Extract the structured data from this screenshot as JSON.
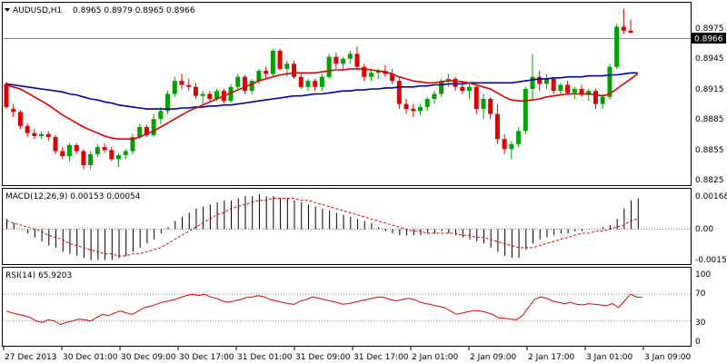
{
  "header": {
    "symbol": "AUDUSD,H1",
    "ohlc": "0.8965 0.8979 0.8965 0.8966"
  },
  "colors": {
    "bull": "#00a000",
    "bear": "#e00000",
    "ma_fast": "#e00000",
    "ma_slow": "#0000a0",
    "macd_bar": "#000000",
    "macd_signal": "#e00000",
    "rsi": "#e00000",
    "grid_dot": "#808080",
    "price_tag_bg": "#000000",
    "price_tag_fg": "#ffffff"
  },
  "current_price": "0.8966",
  "price_axis": [
    "0.8975",
    "0.8945",
    "0.8915",
    "0.8885",
    "0.8855",
    "0.8825"
  ],
  "macd": {
    "label": "MACD(12,26,9) 0.00153 0.00054",
    "axis": [
      "0.00168",
      "0.00",
      "-0.0015"
    ]
  },
  "rsi": {
    "label": "RSI(14) 65.9203",
    "axis": [
      "100",
      "70",
      "30",
      "0"
    ],
    "levels": [
      70,
      30
    ],
    "values": [
      45,
      42,
      40,
      38,
      35,
      30,
      28,
      32,
      30,
      25,
      28,
      30,
      33,
      32,
      30,
      35,
      40,
      38,
      42,
      45,
      42,
      40,
      45,
      50,
      52,
      55,
      58,
      60,
      62,
      65,
      68,
      70,
      68,
      70,
      66,
      64,
      60,
      58,
      60,
      62,
      65,
      66,
      68,
      66,
      62,
      60,
      58,
      56,
      55,
      60,
      62,
      66,
      64,
      62,
      60,
      58,
      55,
      56,
      58,
      60,
      62,
      64,
      66,
      65,
      62,
      60,
      62,
      64,
      62,
      58,
      56,
      54,
      52,
      50,
      45,
      40,
      42,
      44,
      46,
      45,
      43,
      40,
      35,
      34,
      33,
      32,
      38,
      50,
      62,
      66,
      64,
      60,
      58,
      56,
      58,
      55,
      54,
      56,
      55,
      54,
      53,
      56,
      50,
      60,
      70,
      66,
      65
    ]
  },
  "x_axis": [
    "27 Dec 2013",
    "30 Dec 01:00",
    "30 Dec 09:00",
    "30 Dec 17:00",
    "31 Dec 01:00",
    "31 Dec 09:00",
    "31 Dec 17:00",
    "2 Jan 01:00",
    "2 Jan 09:00",
    "2 Jan 17:00",
    "3 Jan 01:00",
    "3 Jan 09:00"
  ],
  "chart_data": {
    "type": "candlestick",
    "price_range": [
      0.8815,
      0.8995
    ],
    "candles": [
      [
        0.8915,
        0.8917,
        0.889,
        0.8892
      ],
      [
        0.889,
        0.8895,
        0.8882,
        0.8887
      ],
      [
        0.8887,
        0.8889,
        0.887,
        0.8873
      ],
      [
        0.8873,
        0.8876,
        0.8862,
        0.8866
      ],
      [
        0.8866,
        0.887,
        0.886,
        0.8863
      ],
      [
        0.8863,
        0.8868,
        0.886,
        0.8865
      ],
      [
        0.8865,
        0.8868,
        0.8858,
        0.8862
      ],
      [
        0.8862,
        0.8864,
        0.8845,
        0.8848
      ],
      [
        0.8848,
        0.8852,
        0.884,
        0.8843
      ],
      [
        0.8843,
        0.8856,
        0.8838,
        0.8854
      ],
      [
        0.8854,
        0.8856,
        0.8845,
        0.8848
      ],
      [
        0.8848,
        0.885,
        0.883,
        0.8834
      ],
      [
        0.8834,
        0.8848,
        0.883,
        0.8845
      ],
      [
        0.8845,
        0.8855,
        0.8842,
        0.8852
      ],
      [
        0.8852,
        0.8856,
        0.8846,
        0.8849
      ],
      [
        0.8849,
        0.8852,
        0.8838,
        0.884
      ],
      [
        0.884,
        0.8846,
        0.8832,
        0.8844
      ],
      [
        0.8844,
        0.885,
        0.884,
        0.8848
      ],
      [
        0.8848,
        0.8865,
        0.8845,
        0.8862
      ],
      [
        0.8862,
        0.8875,
        0.886,
        0.8872
      ],
      [
        0.8872,
        0.8874,
        0.8862,
        0.8864
      ],
      [
        0.8864,
        0.8885,
        0.8862,
        0.888
      ],
      [
        0.888,
        0.8892,
        0.8875,
        0.8888
      ],
      [
        0.8888,
        0.8908,
        0.8885,
        0.8905
      ],
      [
        0.8905,
        0.8922,
        0.8902,
        0.8918
      ],
      [
        0.8918,
        0.8925,
        0.891,
        0.8914
      ],
      [
        0.8914,
        0.892,
        0.8908,
        0.8912
      ],
      [
        0.8912,
        0.8916,
        0.89,
        0.8903
      ],
      [
        0.8903,
        0.8908,
        0.8895,
        0.8905
      ],
      [
        0.8905,
        0.8908,
        0.8898,
        0.89
      ],
      [
        0.89,
        0.891,
        0.8898,
        0.8908
      ],
      [
        0.8908,
        0.891,
        0.8895,
        0.8898
      ],
      [
        0.8898,
        0.8915,
        0.8896,
        0.8912
      ],
      [
        0.8912,
        0.8925,
        0.891,
        0.8922
      ],
      [
        0.8922,
        0.8924,
        0.8905,
        0.8908
      ],
      [
        0.8908,
        0.892,
        0.8905,
        0.8918
      ],
      [
        0.8918,
        0.893,
        0.8915,
        0.8928
      ],
      [
        0.8928,
        0.8932,
        0.892,
        0.8925
      ],
      [
        0.8925,
        0.895,
        0.8922,
        0.8948
      ],
      [
        0.8948,
        0.895,
        0.8928,
        0.893
      ],
      [
        0.893,
        0.8938,
        0.8922,
        0.8935
      ],
      [
        0.8935,
        0.8938,
        0.892,
        0.8922
      ],
      [
        0.8922,
        0.8925,
        0.891,
        0.8912
      ],
      [
        0.8912,
        0.892,
        0.8908,
        0.8918
      ],
      [
        0.8918,
        0.892,
        0.8908,
        0.8912
      ],
      [
        0.8912,
        0.8925,
        0.8908,
        0.8922
      ],
      [
        0.8922,
        0.8945,
        0.892,
        0.8942
      ],
      [
        0.8942,
        0.8946,
        0.893,
        0.8935
      ],
      [
        0.8935,
        0.8942,
        0.8928,
        0.894
      ],
      [
        0.894,
        0.8948,
        0.8935,
        0.8945
      ],
      [
        0.8945,
        0.8952,
        0.893,
        0.8932
      ],
      [
        0.8932,
        0.8935,
        0.8918,
        0.8922
      ],
      [
        0.8922,
        0.893,
        0.8918,
        0.8926
      ],
      [
        0.8926,
        0.893,
        0.892,
        0.8928
      ],
      [
        0.8928,
        0.8934,
        0.8922,
        0.8925
      ],
      [
        0.8925,
        0.893,
        0.8915,
        0.8918
      ],
      [
        0.8918,
        0.8922,
        0.889,
        0.8895
      ],
      [
        0.8895,
        0.89,
        0.8885,
        0.889
      ],
      [
        0.889,
        0.8895,
        0.8882,
        0.8888
      ],
      [
        0.8888,
        0.8895,
        0.8884,
        0.8892
      ],
      [
        0.8892,
        0.8902,
        0.8888,
        0.89
      ],
      [
        0.89,
        0.8908,
        0.8895,
        0.8905
      ],
      [
        0.8905,
        0.892,
        0.8902,
        0.8918
      ],
      [
        0.8918,
        0.8925,
        0.8912,
        0.892
      ],
      [
        0.892,
        0.8922,
        0.8908,
        0.8912
      ],
      [
        0.8912,
        0.8918,
        0.8905,
        0.8908
      ],
      [
        0.8908,
        0.8915,
        0.89,
        0.8912
      ],
      [
        0.8912,
        0.8914,
        0.8885,
        0.889
      ],
      [
        0.889,
        0.8905,
        0.888,
        0.89
      ],
      [
        0.89,
        0.8902,
        0.888,
        0.8885
      ],
      [
        0.8885,
        0.8895,
        0.8855,
        0.886
      ],
      [
        0.886,
        0.8865,
        0.8845,
        0.885
      ],
      [
        0.885,
        0.8858,
        0.884,
        0.8855
      ],
      [
        0.8855,
        0.8872,
        0.8852,
        0.8868
      ],
      [
        0.8868,
        0.8912,
        0.8865,
        0.891
      ],
      [
        0.891,
        0.8945,
        0.89,
        0.8922
      ],
      [
        0.8922,
        0.8928,
        0.8908,
        0.8915
      ],
      [
        0.8915,
        0.8925,
        0.891,
        0.892
      ],
      [
        0.892,
        0.8922,
        0.8905,
        0.8908
      ],
      [
        0.8908,
        0.8916,
        0.8904,
        0.8914
      ],
      [
        0.8914,
        0.8918,
        0.8904,
        0.8906
      ],
      [
        0.8906,
        0.8912,
        0.89,
        0.891
      ],
      [
        0.891,
        0.8914,
        0.8902,
        0.8904
      ],
      [
        0.8904,
        0.891,
        0.8898,
        0.8908
      ],
      [
        0.8908,
        0.891,
        0.889,
        0.8895
      ],
      [
        0.8895,
        0.8905,
        0.889,
        0.8902
      ],
      [
        0.8902,
        0.8935,
        0.89,
        0.8932
      ],
      [
        0.8932,
        0.8975,
        0.893,
        0.8972
      ],
      [
        0.8972,
        0.899,
        0.8965,
        0.8968
      ],
      [
        0.8968,
        0.8979,
        0.8965,
        0.8966
      ]
    ],
    "ma_fast": [
      0.8914,
      0.8912,
      0.891,
      0.8906,
      0.8902,
      0.8898,
      0.8894,
      0.8889,
      0.8884,
      0.888,
      0.8876,
      0.8872,
      0.8869,
      0.8866,
      0.8863,
      0.8861,
      0.886,
      0.886,
      0.886,
      0.8862,
      0.8865,
      0.8868,
      0.8872,
      0.8876,
      0.888,
      0.8884,
      0.8888,
      0.8891,
      0.8894,
      0.8897,
      0.89,
      0.8903,
      0.8906,
      0.8909,
      0.8912,
      0.8915,
      0.8918,
      0.892,
      0.8922,
      0.8924,
      0.8925,
      0.8926,
      0.8926,
      0.8926,
      0.8926,
      0.8927,
      0.8928,
      0.8929,
      0.8929,
      0.893,
      0.893,
      0.893,
      0.8929,
      0.8928,
      0.8927,
      0.8925,
      0.8922,
      0.892,
      0.8918,
      0.8917,
      0.8916,
      0.8916,
      0.8917,
      0.8918,
      0.8918,
      0.8917,
      0.8916,
      0.8914,
      0.8912,
      0.891,
      0.8906,
      0.8902,
      0.8899,
      0.8898,
      0.8898,
      0.8899,
      0.89,
      0.8902,
      0.8903,
      0.8904,
      0.8905,
      0.8905,
      0.8905,
      0.8905,
      0.8904,
      0.8903,
      0.8905,
      0.891,
      0.8915,
      0.892,
      0.8925
    ],
    "ma_slow": [
      0.8915,
      0.8914,
      0.8913,
      0.8912,
      0.8911,
      0.891,
      0.8909,
      0.8908,
      0.8907,
      0.8905,
      0.8904,
      0.8902,
      0.89,
      0.8899,
      0.8897,
      0.8896,
      0.8894,
      0.8893,
      0.8892,
      0.8891,
      0.889,
      0.889,
      0.889,
      0.889,
      0.889,
      0.8891,
      0.8891,
      0.8892,
      0.8892,
      0.8893,
      0.8893,
      0.8894,
      0.8894,
      0.8895,
      0.8896,
      0.8897,
      0.8898,
      0.8899,
      0.89,
      0.8901,
      0.8902,
      0.8903,
      0.8903,
      0.8904,
      0.8905,
      0.8905,
      0.8906,
      0.8907,
      0.8908,
      0.8908,
      0.8909,
      0.8909,
      0.891,
      0.891,
      0.8911,
      0.8911,
      0.8912,
      0.8912,
      0.8912,
      0.8913,
      0.8913,
      0.8914,
      0.8914,
      0.8915,
      0.8915,
      0.8915,
      0.8916,
      0.8916,
      0.8916,
      0.8916,
      0.8916,
      0.8916,
      0.8916,
      0.8917,
      0.8918,
      0.8919,
      0.892,
      0.892,
      0.8921,
      0.8921,
      0.8922,
      0.8922,
      0.8922,
      0.8923,
      0.8923,
      0.8923,
      0.8924,
      0.8924,
      0.8925,
      0.8926,
      0.8926
    ],
    "macd_hist": [
      0.0005,
      0.0003,
      0.0,
      -0.0002,
      -0.0004,
      -0.0006,
      -0.0008,
      -0.0009,
      -0.0011,
      -0.0012,
      -0.0013,
      -0.0014,
      -0.0015,
      -0.0015,
      -0.0015,
      -0.0015,
      -0.0014,
      -0.0013,
      -0.0011,
      -0.0009,
      -0.0007,
      -0.0005,
      -0.0002,
      0.0001,
      0.0004,
      0.0006,
      0.0008,
      0.001,
      0.0011,
      0.0012,
      0.0013,
      0.0014,
      0.0014,
      0.0015,
      0.0016,
      0.0016,
      0.0017,
      0.0016,
      0.0016,
      0.0015,
      0.0015,
      0.0014,
      0.0013,
      0.0012,
      0.0011,
      0.001,
      0.0009,
      0.0008,
      0.0007,
      0.0006,
      0.0005,
      0.0004,
      0.0003,
      0.0001,
      -0.0001,
      -0.0002,
      -0.0003,
      -0.0003,
      -0.0003,
      -0.0003,
      -0.0002,
      -0.0002,
      -0.0001,
      -0.0002,
      -0.0003,
      -0.0004,
      -0.0005,
      -0.0006,
      -0.0007,
      -0.0009,
      -0.0011,
      -0.0013,
      -0.0014,
      -0.0014,
      -0.001,
      -0.0007,
      -0.0005,
      -0.0004,
      -0.0003,
      -0.0002,
      -0.0002,
      -0.0001,
      -0.0001,
      0.0,
      0.0,
      0.0001,
      0.0002,
      0.0005,
      0.001,
      0.0014,
      0.0015
    ],
    "macd_signal": [
      0.0004,
      0.0003,
      0.0002,
      0.0001,
      0.0,
      -0.0001,
      -0.0003,
      -0.0004,
      -0.0005,
      -0.0007,
      -0.0008,
      -0.0009,
      -0.001,
      -0.0011,
      -0.0012,
      -0.0012,
      -0.0013,
      -0.0013,
      -0.0012,
      -0.0012,
      -0.0011,
      -0.001,
      -0.0009,
      -0.0007,
      -0.0005,
      -0.0003,
      -0.0001,
      0.0001,
      0.0003,
      0.0005,
      0.0007,
      0.0008,
      0.001,
      0.0011,
      0.0012,
      0.0013,
      0.0014,
      0.0014,
      0.0015,
      0.0015,
      0.0015,
      0.0015,
      0.0014,
      0.0014,
      0.0013,
      0.0012,
      0.0011,
      0.001,
      0.0009,
      0.0008,
      0.0007,
      0.0006,
      0.0005,
      0.0004,
      0.0003,
      0.0002,
      0.0001,
      0.0,
      -0.0001,
      -0.0001,
      -0.0002,
      -0.0002,
      -0.0002,
      -0.0002,
      -0.0002,
      -0.0003,
      -0.0003,
      -0.0004,
      -0.0004,
      -0.0005,
      -0.0006,
      -0.0007,
      -0.0008,
      -0.0009,
      -0.0009,
      -0.0009,
      -0.0008,
      -0.0007,
      -0.0006,
      -0.0005,
      -0.0004,
      -0.0003,
      -0.0002,
      -0.0002,
      -0.0001,
      -0.0001,
      0.0,
      0.0001,
      0.0002,
      0.0004,
      0.0005
    ]
  }
}
